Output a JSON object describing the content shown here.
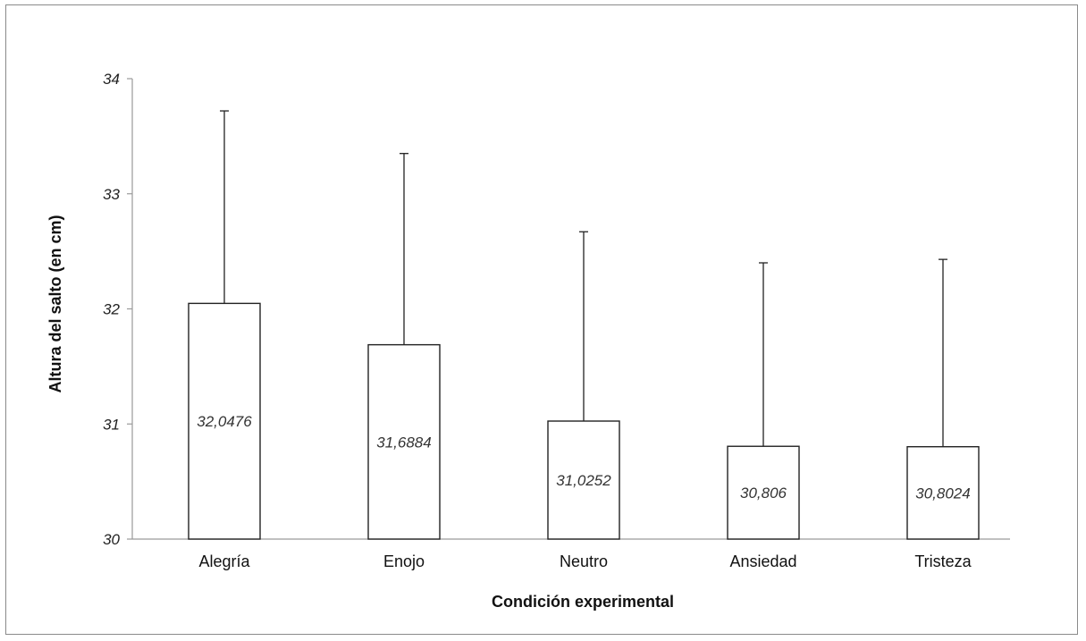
{
  "chart_data": {
    "type": "bar",
    "categories": [
      "Alegría",
      "Enojo",
      "Neutro",
      "Ansiedad",
      "Tristeza"
    ],
    "values": [
      32.0476,
      31.6884,
      31.0252,
      30.806,
      30.8024
    ],
    "value_labels": [
      "32,0476",
      "31,6884",
      "31,0252",
      "30,806",
      "30,8024"
    ],
    "error_upper": [
      33.72,
      33.35,
      32.67,
      32.4,
      32.43
    ],
    "title": "",
    "xlabel": "Condición experimental",
    "ylabel": "Altura del salto (en cm)",
    "ylim": [
      30,
      34
    ],
    "yticks": [
      30,
      31,
      32,
      33,
      34
    ],
    "grid": false,
    "legend": "none",
    "colors": {
      "bar_fill": "#ffffff",
      "bar_stroke": "#222222",
      "axis": "#9a9a9a"
    }
  }
}
